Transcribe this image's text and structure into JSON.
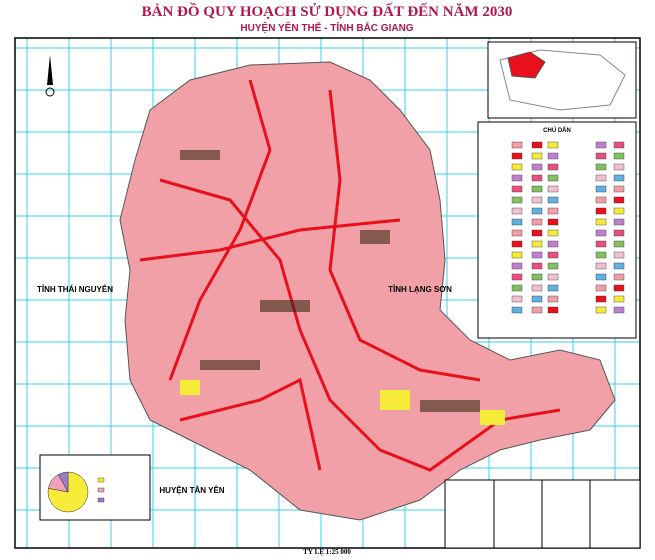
{
  "title": "BẢN ĐỒ QUY HOẠCH SỬ DỤNG ĐẤT ĐẾN NĂM 2030",
  "subtitle": "HUYỆN YÊN THẾ - TỈNH BẮC GIANG",
  "regions": [
    "TỈNH THÁI NGUYÊN",
    "TỈNH LẠNG SƠN",
    "HUYỆN TÂN YÊN"
  ],
  "legend": {
    "title": "CHÚ DẪN"
  },
  "scale": "TỶ LỆ 1:25 000",
  "chart_data": {
    "type": "pie",
    "values": [
      78,
      14,
      8
    ],
    "colors": [
      "#f5ec3a",
      "#f0a0b8",
      "#9a7cc8"
    ]
  }
}
